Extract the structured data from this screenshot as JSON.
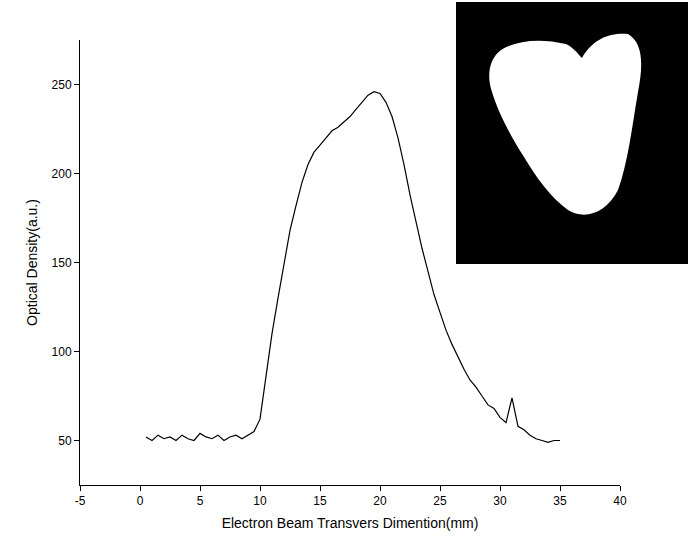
{
  "chart_data": {
    "type": "line",
    "xlabel": "Electron Beam Transvers Dimention(mm)",
    "ylabel": "Optical Density(a.u.)",
    "x": [
      0.5,
      1,
      1.5,
      2,
      2.5,
      3,
      3.5,
      4,
      4.5,
      5,
      5.5,
      6,
      6.5,
      7,
      7.5,
      8,
      8.5,
      9,
      9.5,
      10,
      10.5,
      11,
      11.5,
      12,
      12.5,
      13,
      13.5,
      14,
      14.5,
      15,
      15.5,
      16,
      16.5,
      17,
      17.5,
      18,
      18.5,
      19,
      19.5,
      20,
      20.5,
      21,
      21.5,
      22,
      22.5,
      23,
      23.5,
      24,
      24.5,
      25,
      25.5,
      26,
      26.5,
      27,
      27.5,
      28,
      28.5,
      29,
      29.5,
      30,
      30.5,
      31,
      31.5,
      32,
      32.5,
      33,
      33.5,
      34,
      34.5,
      35
    ],
    "values": [
      52,
      50,
      53,
      51,
      52,
      50,
      53,
      51,
      50,
      54,
      52,
      51,
      53,
      50,
      52,
      53,
      51,
      53,
      55,
      62,
      85,
      110,
      130,
      150,
      168,
      182,
      195,
      205,
      212,
      216,
      220,
      224,
      226,
      229,
      232,
      236,
      240,
      244,
      246,
      245,
      240,
      232,
      220,
      205,
      188,
      172,
      158,
      145,
      132,
      122,
      112,
      104,
      97,
      90,
      84,
      80,
      75,
      70,
      68,
      63,
      60,
      74,
      58,
      56,
      53,
      51,
      50,
      49,
      50,
      50
    ],
    "color": "#000000",
    "xlim": [
      -5,
      40
    ],
    "xticks": [
      -5,
      0,
      5,
      10,
      15,
      20,
      25,
      30,
      35,
      40
    ],
    "ylim": [
      25,
      275
    ],
    "yticks": [
      50,
      100,
      150,
      200,
      250
    ],
    "grid": false
  }
}
